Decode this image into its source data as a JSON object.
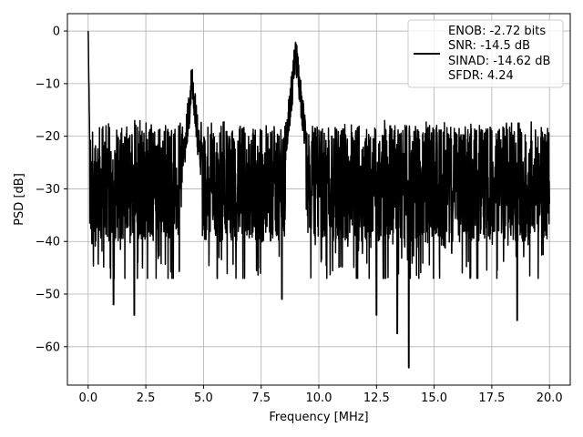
{
  "chart_data": {
    "type": "line",
    "title": "",
    "xlabel": "Frequency [MHz]",
    "ylabel": "PSD [dB]",
    "xlim": [
      -0.9,
      20.9
    ],
    "ylim": [
      -67.3,
      3.3
    ],
    "x_ticks": [
      0.0,
      2.5,
      5.0,
      7.5,
      10.0,
      12.5,
      15.0,
      17.5,
      20.0
    ],
    "x_tick_labels": [
      "0.0",
      "2.5",
      "5.0",
      "7.5",
      "10.0",
      "12.5",
      "15.0",
      "17.5",
      "20.0"
    ],
    "y_ticks": [
      0,
      -10,
      -20,
      -30,
      -40,
      -50,
      -60
    ],
    "y_tick_labels": [
      "0",
      "−10",
      "−20",
      "−30",
      "−40",
      "−50",
      "−60"
    ],
    "grid": true,
    "legend_position": "top-right",
    "legend_lines": [
      "ENOB: -2.72 bits",
      "SNR: -14.5 dB",
      "SINAD: -14.62 dB",
      "SFDR: 4.24"
    ],
    "series": [
      {
        "color": "#000000",
        "x_range": [
          0.0,
          20.0
        ],
        "noise_floor": {
          "mean": -29,
          "upper": -17,
          "lower": -47
        },
        "peaks": [
          {
            "x": 0.0,
            "y": 0
          },
          {
            "x": 4.5,
            "y": -10
          },
          {
            "x": 9.0,
            "y": -4.3
          }
        ],
        "dips": [
          {
            "x": 1.1,
            "y": -52
          },
          {
            "x": 2.0,
            "y": -54
          },
          {
            "x": 8.4,
            "y": -51
          },
          {
            "x": 12.5,
            "y": -54
          },
          {
            "x": 13.4,
            "y": -57.5
          },
          {
            "x": 13.9,
            "y": -64
          },
          {
            "x": 18.6,
            "y": -55
          }
        ]
      }
    ]
  }
}
